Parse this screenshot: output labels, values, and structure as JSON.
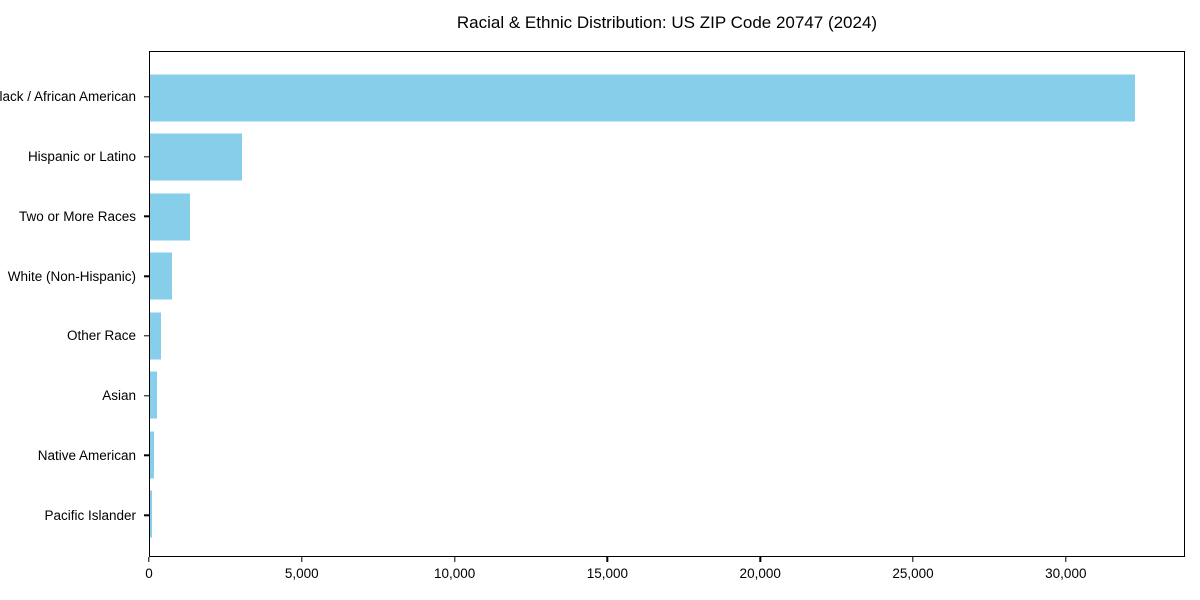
{
  "chart_data": {
    "type": "bar",
    "orientation": "horizontal",
    "title": "Racial & Ethnic Distribution: US ZIP Code 20747 (2024)",
    "categories": [
      "Black / African American",
      "Hispanic or Latino",
      "Two or More Races",
      "White (Non-Hispanic)",
      "Other Race",
      "Asian",
      "Native American",
      "Pacific Islander"
    ],
    "values": [
      32290,
      3000,
      1300,
      720,
      370,
      240,
      120,
      70
    ],
    "xlabel": "",
    "ylabel": "",
    "xlim": [
      0,
      33900
    ],
    "x_ticks": [
      {
        "value": 0,
        "label": "0"
      },
      {
        "value": 5000,
        "label": "5,000"
      },
      {
        "value": 10000,
        "label": "10,000"
      },
      {
        "value": 15000,
        "label": "15,000"
      },
      {
        "value": 20000,
        "label": "20,000"
      },
      {
        "value": 25000,
        "label": "25,000"
      },
      {
        "value": 30000,
        "label": "30,000"
      }
    ],
    "bar_color": "#87CEEB",
    "axis_color": "#000000",
    "text_color": "#000000",
    "grid": false,
    "legend": "none"
  }
}
